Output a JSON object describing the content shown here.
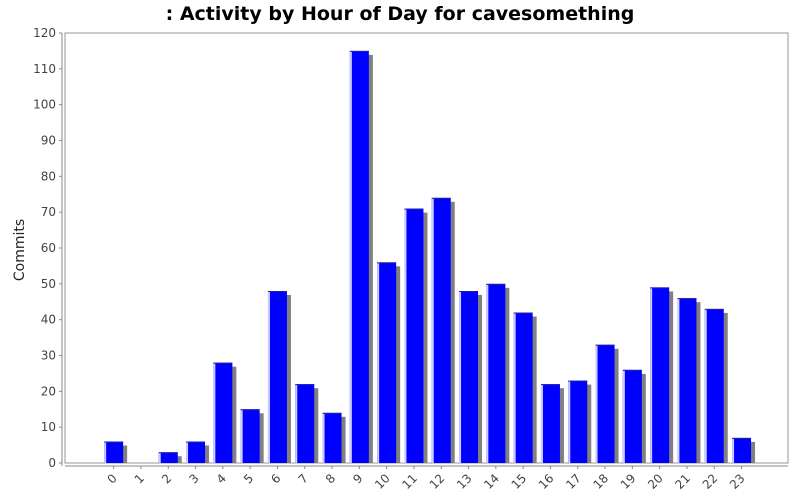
{
  "chart_data": {
    "type": "bar",
    "title": ": Activity by Hour of Day for cavesomething",
    "xlabel": "",
    "ylabel": "Commits",
    "ylim": [
      0,
      120
    ],
    "yticks": [
      0,
      10,
      20,
      30,
      40,
      50,
      60,
      70,
      80,
      90,
      100,
      110,
      120
    ],
    "categories": [
      "0",
      "1",
      "2",
      "3",
      "4",
      "5",
      "6",
      "7",
      "8",
      "9",
      "10",
      "11",
      "12",
      "13",
      "14",
      "15",
      "16",
      "17",
      "18",
      "19",
      "20",
      "21",
      "22",
      "23"
    ],
    "values": [
      6,
      0,
      3,
      6,
      28,
      15,
      48,
      22,
      14,
      115,
      56,
      71,
      74,
      48,
      50,
      42,
      22,
      23,
      33,
      26,
      49,
      46,
      43,
      7
    ],
    "grid": false,
    "bar_color": "#0000ff",
    "shadow_color": "#808080"
  }
}
